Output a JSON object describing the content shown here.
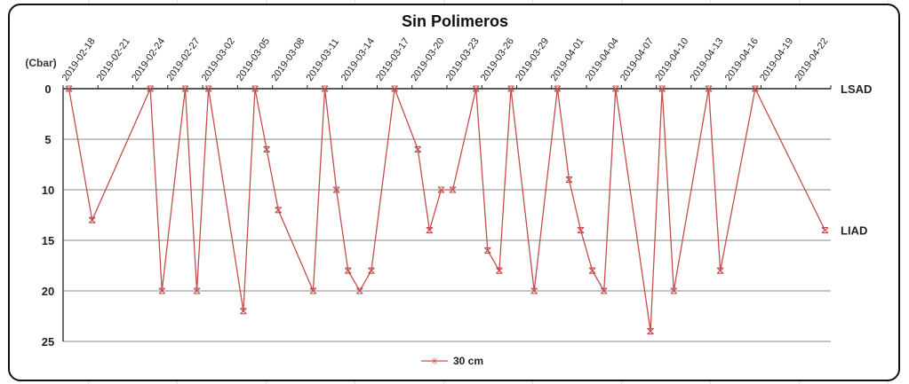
{
  "chart_data": {
    "type": "line",
    "title": "Sin Polimeros",
    "ylabel": "(Cbar)",
    "xlabel": "",
    "ylim": [
      0,
      25
    ],
    "y_inverted": true,
    "y_ticks": [
      0,
      5,
      10,
      15,
      20,
      25
    ],
    "x_range": [
      "2019-02-18",
      "2019-04-25"
    ],
    "x_tick_labels": [
      "2019-02-18",
      "2019-02-21",
      "2019-02-24",
      "2019-02-27",
      "2019-03-02",
      "2019-03-05",
      "2019-03-08",
      "2019-03-11",
      "2019-03-14",
      "2019-03-17",
      "2019-03-20",
      "2019-03-23",
      "2019-03-26",
      "2019-03-29",
      "2019-04-01",
      "2019-04-04",
      "2019-04-07",
      "2019-04-10",
      "2019-04-13",
      "2019-04-16",
      "2019-04-19",
      "2019-04-22"
    ],
    "grid": true,
    "reference_lines": [
      {
        "label": "LSAD",
        "value": 0
      },
      {
        "label": "LIAD",
        "value": 14
      }
    ],
    "legend_position": "bottom",
    "series": [
      {
        "name": "30 cm",
        "color": "#c0504d",
        "marker": "star",
        "x": [
          "2019-02-18",
          "2019-02-20",
          "2019-02-25",
          "2019-02-26",
          "2019-02-28",
          "2019-03-01",
          "2019-03-02",
          "2019-03-05",
          "2019-03-06",
          "2019-03-07",
          "2019-03-08",
          "2019-03-11",
          "2019-03-12",
          "2019-03-13",
          "2019-03-14",
          "2019-03-15",
          "2019-03-16",
          "2019-03-18",
          "2019-03-20",
          "2019-03-21",
          "2019-03-22",
          "2019-03-23",
          "2019-03-25",
          "2019-03-26",
          "2019-03-27",
          "2019-03-28",
          "2019-03-30",
          "2019-04-01",
          "2019-04-02",
          "2019-04-03",
          "2019-04-04",
          "2019-04-05",
          "2019-04-06",
          "2019-04-09",
          "2019-04-10",
          "2019-04-11",
          "2019-04-14",
          "2019-04-15",
          "2019-04-18",
          "2019-04-24"
        ],
        "values": [
          0,
          13,
          0,
          20,
          0,
          20,
          0,
          22,
          0,
          6,
          12,
          20,
          0,
          10,
          18,
          20,
          18,
          0,
          6,
          14,
          10,
          10,
          0,
          16,
          18,
          0,
          20,
          0,
          9,
          14,
          18,
          20,
          0,
          24,
          0,
          20,
          0,
          18,
          0,
          14
        ]
      }
    ]
  }
}
